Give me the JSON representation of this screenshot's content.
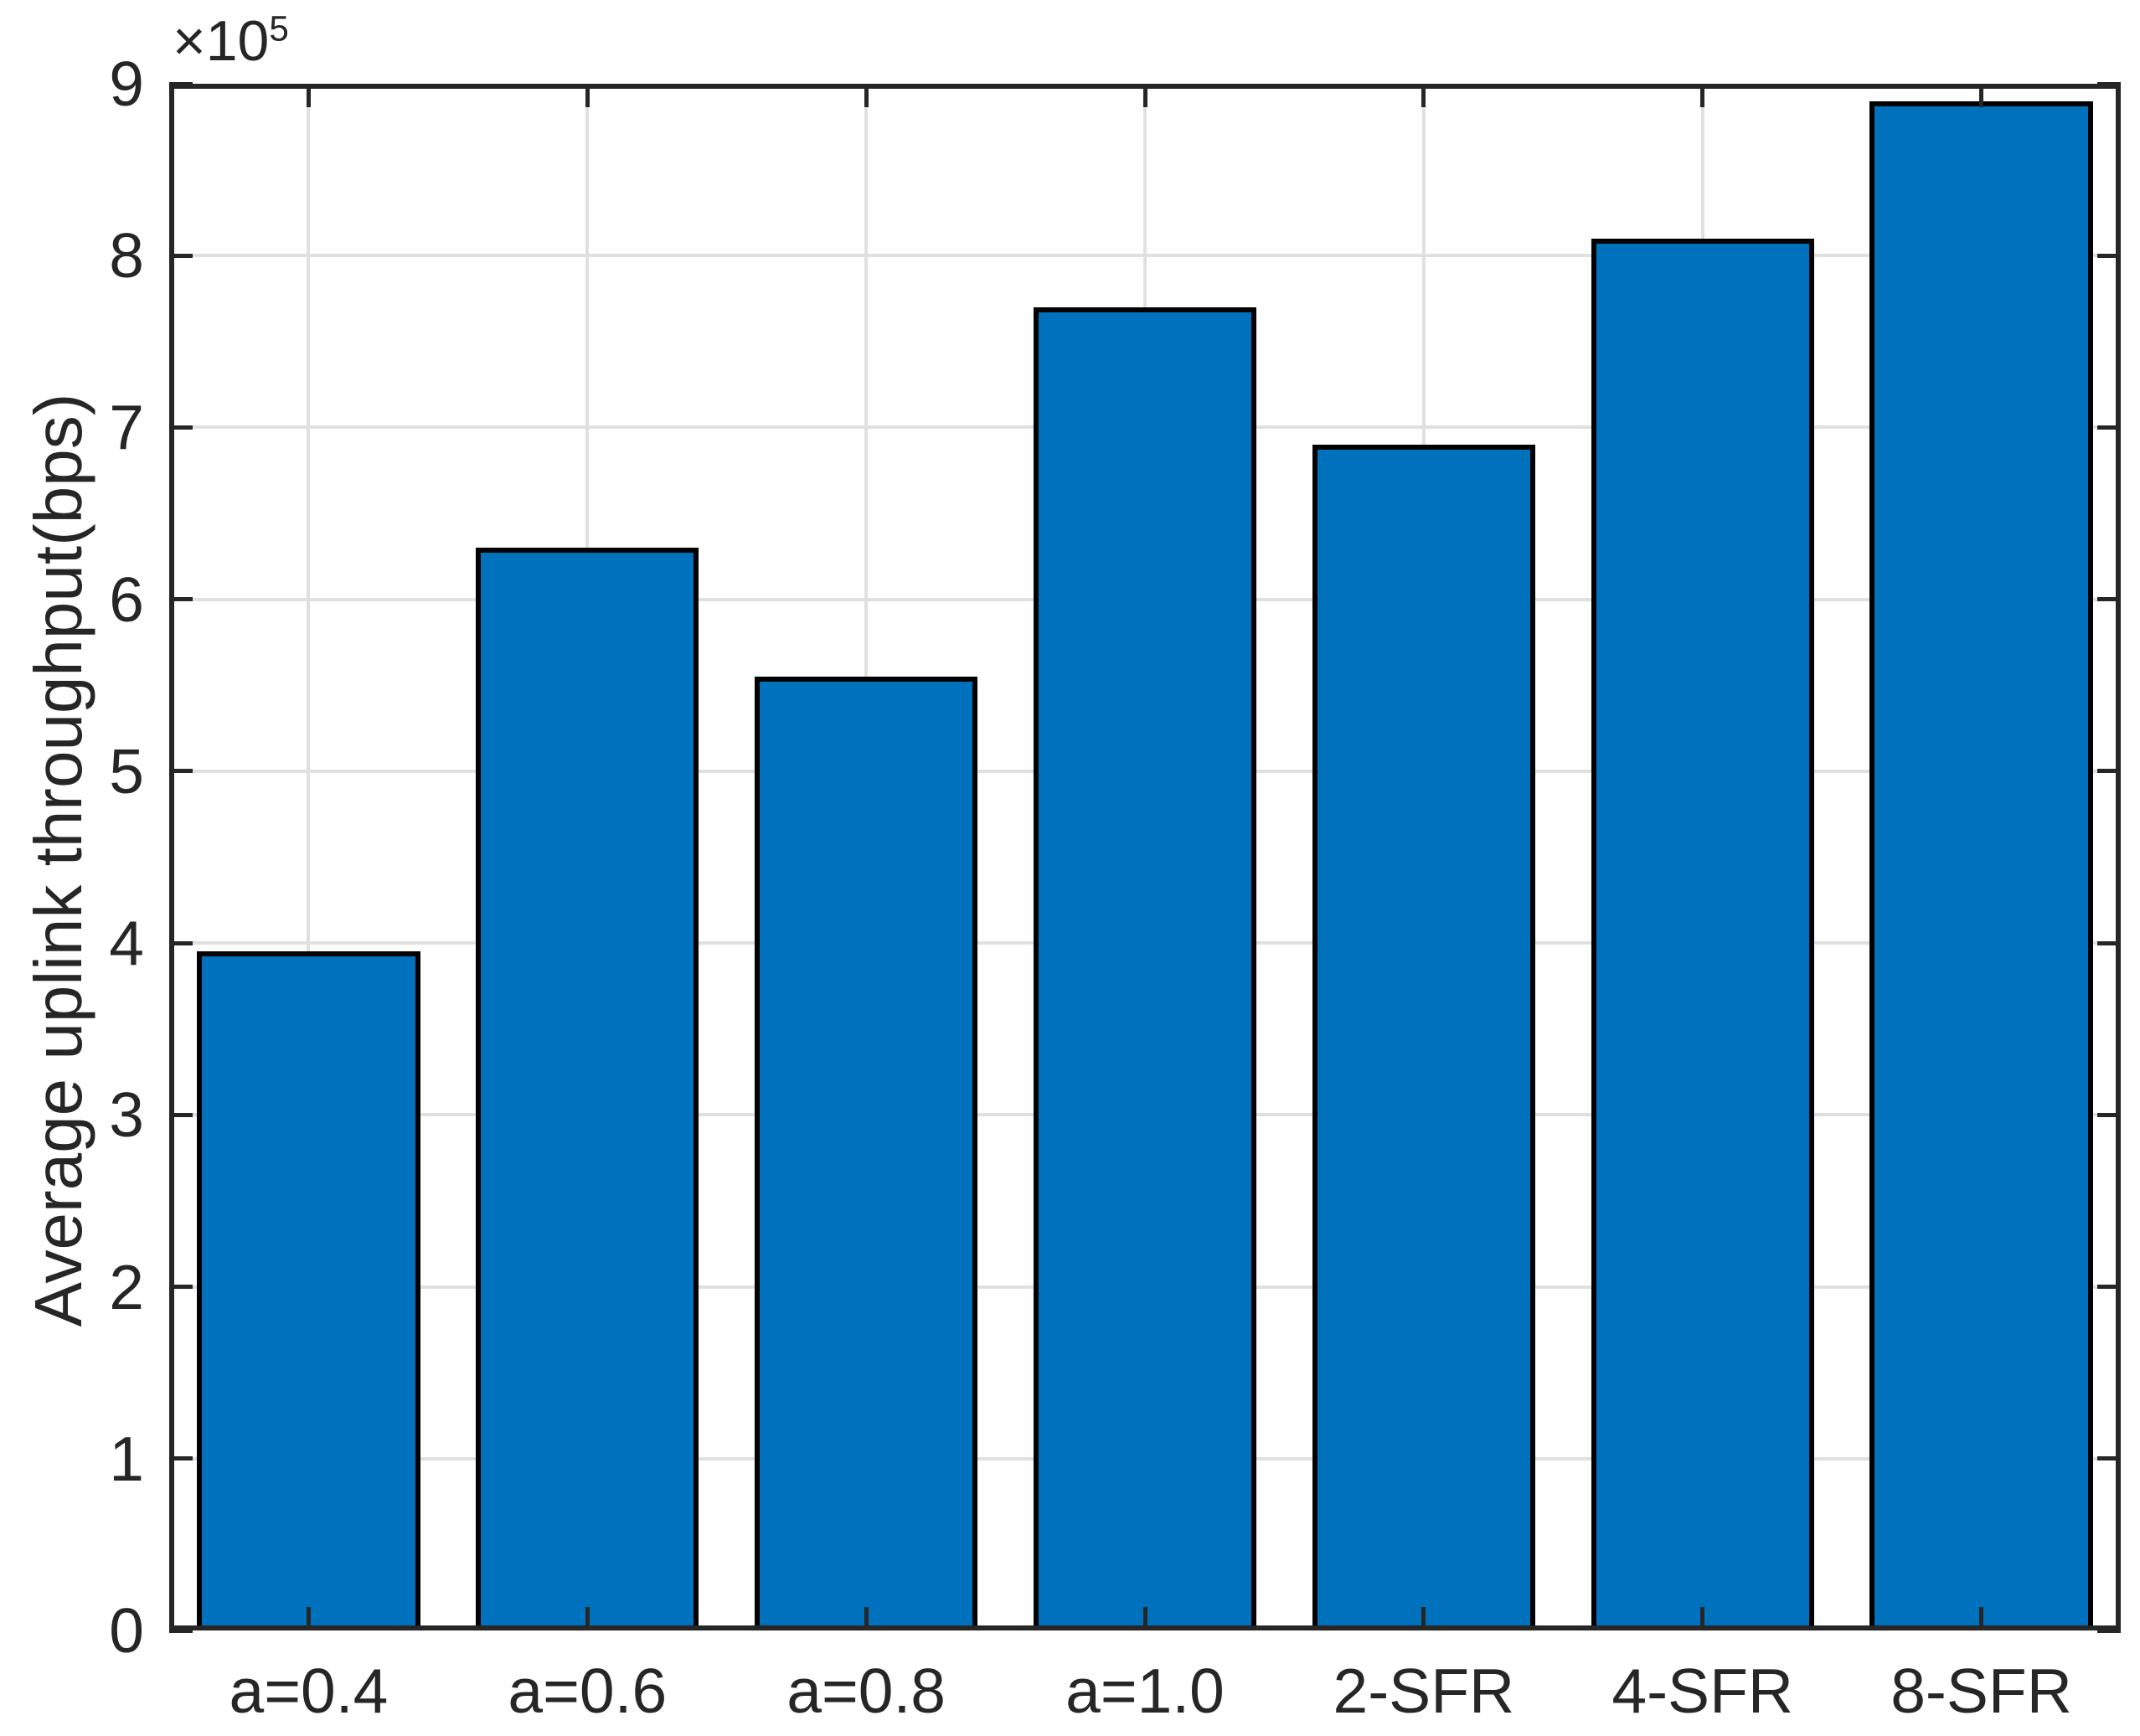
{
  "chart_data": {
    "type": "bar",
    "title": "",
    "xlabel": "",
    "ylabel": "Average uplink throughput(bps)",
    "categories": [
      "a=0.4",
      "a=0.6",
      "a=0.8",
      "a=1.0",
      "2-SFR",
      "4-SFR",
      "8-SFR"
    ],
    "values": [
      395000,
      630000,
      555000,
      770000,
      690000,
      810000,
      890000
    ],
    "ylim": [
      0,
      900000
    ],
    "ytick_values": [
      0,
      100000,
      200000,
      300000,
      400000,
      500000,
      600000,
      700000,
      800000,
      900000
    ],
    "ytick_labels": [
      "0",
      "1",
      "2",
      "3",
      "4",
      "5",
      "6",
      "7",
      "8",
      "9"
    ],
    "offset_base": "×10",
    "offset_exp": "5",
    "grid": true,
    "legend": null,
    "bar_width_fraction": 0.8,
    "colors": {
      "bar_fill": "#0072bd",
      "bar_edge": "#000000",
      "grid_line": "#e0e0e0",
      "axis_line": "#262626",
      "tick_text": "#262626",
      "background": "#ffffff"
    }
  }
}
